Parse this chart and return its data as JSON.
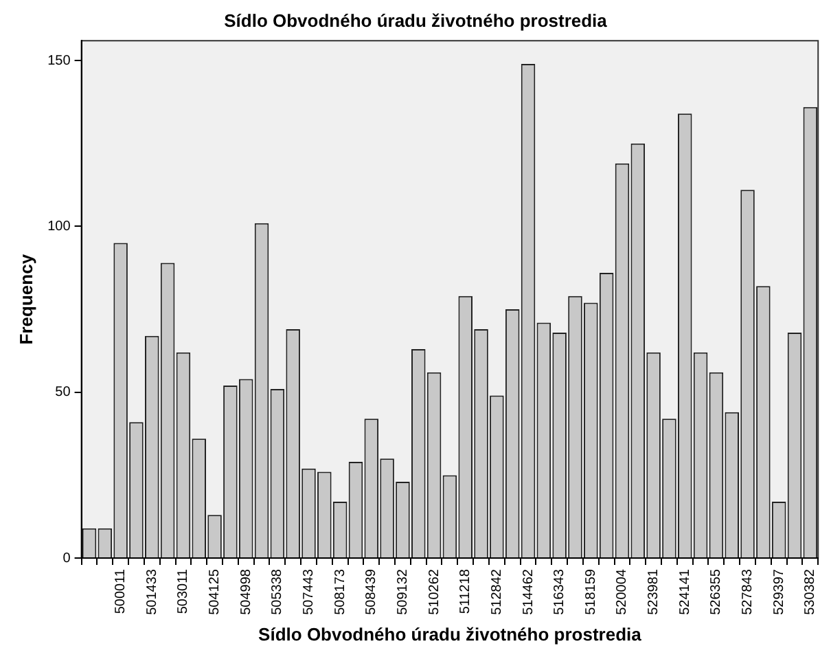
{
  "chart_data": {
    "type": "bar",
    "title": "Sídlo Obvodného úradu životného prostredia",
    "xlabel": "Sídlo Obvodného úradu životného prostredia",
    "ylabel": "Frequency",
    "categories": [
      null,
      null,
      "500011",
      null,
      "501433",
      null,
      "503011",
      null,
      "504125",
      null,
      "504998",
      null,
      "505338",
      null,
      "507443",
      null,
      "508173",
      null,
      "508439",
      null,
      "509132",
      null,
      "510262",
      null,
      "511218",
      null,
      "512842",
      null,
      "514462",
      null,
      "516343",
      null,
      "518159",
      null,
      "520004",
      null,
      "523981",
      null,
      "524141",
      null,
      "526355",
      null,
      "527843",
      null,
      "529397",
      null,
      "530382"
    ],
    "values": [
      9,
      9,
      95,
      41,
      67,
      89,
      62,
      36,
      13,
      52,
      54,
      101,
      51,
      69,
      27,
      26,
      17,
      29,
      42,
      30,
      23,
      63,
      56,
      25,
      79,
      69,
      49,
      75,
      149,
      71,
      68,
      79,
      77,
      86,
      119,
      125,
      62,
      42,
      134,
      62,
      56,
      44,
      111,
      82,
      17,
      68,
      136
    ],
    "color": "#c8c8c8",
    "ylim": [
      0,
      156
    ],
    "yticks": [
      0,
      50,
      100,
      150
    ],
    "grid": false,
    "legend": false
  }
}
